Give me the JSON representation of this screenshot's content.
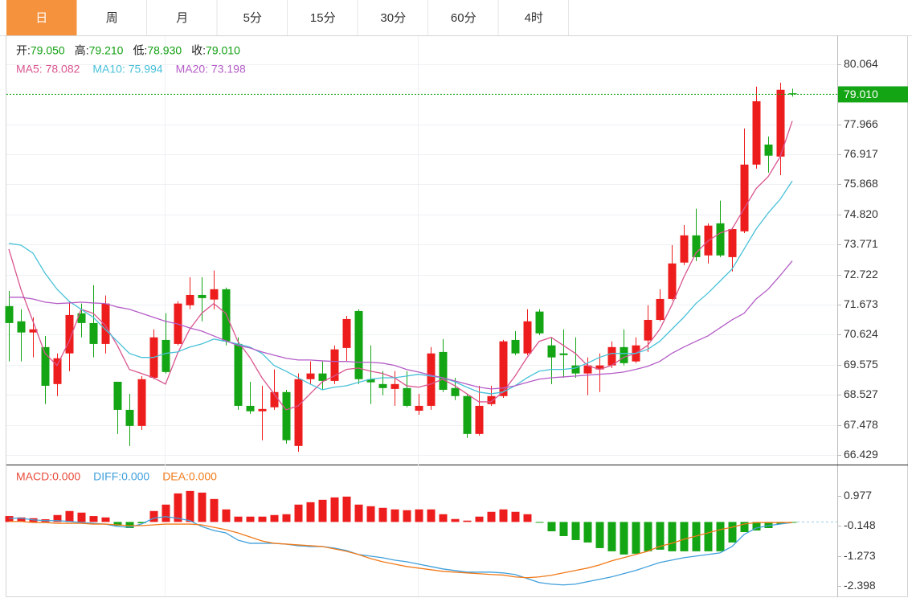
{
  "toolbar": {
    "tabs": [
      "日",
      "周",
      "月",
      "5分",
      "15分",
      "30分",
      "60分",
      "4时"
    ],
    "active": 0
  },
  "chart_data": [
    {
      "type": "candlestick",
      "info": [
        {
          "label": "开:",
          "value": "79.050"
        },
        {
          "label": "高:",
          "value": "79.210"
        },
        {
          "label": "低:",
          "value": "78.930"
        },
        {
          "label": "收:",
          "value": "79.010"
        }
      ],
      "info_color": "#12a012",
      "open": [
        71.62,
        71.09,
        70.7,
        70.19,
        68.9,
        69.97,
        71.37,
        71.03,
        70.3,
        68.98,
        68.0,
        67.44,
        69.12,
        70.44,
        70.3,
        71.65,
        72.01,
        71.85,
        72.21,
        70.3,
        68.14,
        67.95,
        68.09,
        68.62,
        66.74,
        69.07,
        69.27,
        69.01,
        70.16,
        71.45,
        69.07,
        68.9,
        68.73,
        68.76,
        67.97,
        68.14,
        70.02,
        68.76,
        68.48,
        67.16,
        68.2,
        68.48,
        70.44,
        69.97,
        71.43,
        70.25,
        69.97,
        69.55,
        69.27,
        69.41,
        69.55,
        70.19,
        69.69,
        70.42,
        71.14,
        71.87,
        73.14,
        74.09,
        73.39,
        74.51,
        73.33,
        74.23,
        76.56,
        77.26,
        76.84,
        79.05
      ],
      "high": [
        72.15,
        71.51,
        71.23,
        70.58,
        69.97,
        71.79,
        71.71,
        72.35,
        71.99,
        68.98,
        68.56,
        69.18,
        70.81,
        71.37,
        71.79,
        72.63,
        72.63,
        72.86,
        72.27,
        70.53,
        68.98,
        68.84,
        69.41,
        68.7,
        69.27,
        69.69,
        69.69,
        70.25,
        71.28,
        71.51,
        70.25,
        69.35,
        69.35,
        69.35,
        68.56,
        70.19,
        70.47,
        69.12,
        68.56,
        68.84,
        68.84,
        70.44,
        70.75,
        71.51,
        71.51,
        70.53,
        70.81,
        70.53,
        69.83,
        69.97,
        70.39,
        70.81,
        70.53,
        71.65,
        72.21,
        73.75,
        74.45,
        75.02,
        74.51,
        75.3,
        74.37,
        77.82,
        79.28,
        77.54,
        79.42,
        79.21
      ],
      "low": [
        69.69,
        69.69,
        69.83,
        68.2,
        68.48,
        69.35,
        70.53,
        69.83,
        69.97,
        67.16,
        66.74,
        67.3,
        69.07,
        69.27,
        70.25,
        71.51,
        71.09,
        71.51,
        70.25,
        68.0,
        67.86,
        66.94,
        68.0,
        66.82,
        66.54,
        68.9,
        68.7,
        68.9,
        69.69,
        68.9,
        68.2,
        68.51,
        68.14,
        68.09,
        67.83,
        68.0,
        68.62,
        68.34,
        67.02,
        67.1,
        68.14,
        68.42,
        69.91,
        69.91,
        70.61,
        68.9,
        69.12,
        69.12,
        68.51,
        68.62,
        69.46,
        69.55,
        69.63,
        70.02,
        71.09,
        71.82,
        73.05,
        73.19,
        73.11,
        73.33,
        72.83,
        74.17,
        76.42,
        76.28,
        76.19,
        78.93
      ],
      "close": [
        71.03,
        70.7,
        70.81,
        68.84,
        69.8,
        71.31,
        71.03,
        70.3,
        71.71,
        68.0,
        67.44,
        69.07,
        70.53,
        69.32,
        71.71,
        72.01,
        71.9,
        72.21,
        70.39,
        68.14,
        67.95,
        68.03,
        68.62,
        66.94,
        69.07,
        69.27,
        69.01,
        70.11,
        71.17,
        69.07,
        68.96,
        68.76,
        68.9,
        68.14,
        68.14,
        69.97,
        68.7,
        68.48,
        67.16,
        68.14,
        68.48,
        70.39,
        69.97,
        71.09,
        70.67,
        69.83,
        69.91,
        69.27,
        69.55,
        69.55,
        70.19,
        69.63,
        70.25,
        71.14,
        71.87,
        73.11,
        74.09,
        73.33,
        74.43,
        73.39,
        74.31,
        76.56,
        78.77,
        76.87,
        79.17,
        79.01
      ],
      "up_color": "#ee1d1d",
      "down_color": "#14a514",
      "series": [
        {
          "name": "MA5: 78.082",
          "color": "#d9558f",
          "values": [
            73.61,
            72.21,
            71.09,
            69.97,
            69.55,
            70.39,
            71.51,
            71.37,
            70.95,
            70.25,
            69.41,
            69.27,
            69.12,
            68.9,
            69.97,
            70.81,
            71.37,
            71.71,
            71.37,
            70.39,
            69.83,
            69.12,
            68.56,
            68.0,
            68.14,
            68.56,
            68.98,
            69.18,
            69.41,
            69.46,
            69.35,
            69.27,
            69.12,
            68.84,
            68.79,
            68.9,
            69.07,
            68.84,
            68.56,
            68.28,
            68.28,
            68.62,
            69.18,
            69.83,
            70.39,
            70.53,
            70.25,
            69.97,
            69.55,
            69.41,
            69.55,
            69.83,
            69.97,
            70.25,
            70.81,
            71.65,
            72.63,
            73.47,
            73.89,
            74.17,
            74.31,
            75.02,
            75.72,
            76.14,
            76.84,
            78.08
          ]
        },
        {
          "name": "MA10: 75.994",
          "color": "#48c1d8",
          "values": [
            73.81,
            73.75,
            73.47,
            72.77,
            72.21,
            71.79,
            71.51,
            71.23,
            70.81,
            70.39,
            69.97,
            69.83,
            69.83,
            69.97,
            70.02,
            70.19,
            70.3,
            70.47,
            70.39,
            70.3,
            70.19,
            69.97,
            69.55,
            69.35,
            69.12,
            68.9,
            68.7,
            68.79,
            68.84,
            68.96,
            69.07,
            69.12,
            69.12,
            69.18,
            69.24,
            69.18,
            69.12,
            68.98,
            68.79,
            68.62,
            68.56,
            68.62,
            68.84,
            69.12,
            69.35,
            69.41,
            69.41,
            69.46,
            69.63,
            69.83,
            69.97,
            69.97,
            69.97,
            70.11,
            70.39,
            70.81,
            71.23,
            71.71,
            72.07,
            72.49,
            72.91,
            73.61,
            74.31,
            74.87,
            75.35,
            75.99
          ]
        },
        {
          "name": "MA20: 73.198",
          "color": "#b45cc7",
          "values": [
            71.93,
            71.93,
            71.87,
            71.76,
            71.71,
            71.73,
            71.76,
            71.73,
            71.71,
            71.59,
            71.51,
            71.37,
            71.23,
            71.09,
            71.0,
            70.86,
            70.75,
            70.58,
            70.41,
            70.25,
            70.16,
            70.02,
            69.91,
            69.8,
            69.74,
            69.74,
            69.71,
            69.69,
            69.69,
            69.66,
            69.66,
            69.63,
            69.55,
            69.41,
            69.32,
            69.21,
            69.12,
            69.01,
            68.9,
            68.79,
            68.73,
            68.76,
            68.84,
            68.96,
            69.07,
            69.12,
            69.15,
            69.18,
            69.21,
            69.24,
            69.27,
            69.32,
            69.41,
            69.52,
            69.69,
            69.97,
            70.19,
            70.39,
            70.58,
            70.86,
            71.14,
            71.37,
            71.87,
            72.21,
            72.69,
            73.2
          ]
        }
      ],
      "ylim": [
        66.09,
        81.07
      ],
      "yticks": [
        80.064,
        77.966,
        76.917,
        75.868,
        {
          "value": 74.82,
          "label": "74.820"
        },
        73.771,
        72.722,
        71.673,
        70.624,
        69.575,
        68.527,
        67.478,
        66.429
      ],
      "price_marker": {
        "value": 79.01,
        "label": "79.010",
        "color": "#14a514"
      },
      "grid": true
    },
    {
      "type": "macd",
      "up_color": "#ee1d1d",
      "down_color": "#14a514",
      "series": [
        {
          "name": "MACD:0.000",
          "type": "bar",
          "color": "#e84b3a",
          "values": [
            0.22,
            0.17,
            0.14,
            0.1,
            0.26,
            0.41,
            0.35,
            0.22,
            0.17,
            -0.14,
            -0.23,
            -0.05,
            0.41,
            0.65,
            1.07,
            1.16,
            1.1,
            0.86,
            0.47,
            0.2,
            0.2,
            0.2,
            0.26,
            0.29,
            0.65,
            0.74,
            0.83,
            0.92,
            0.95,
            0.65,
            0.59,
            0.53,
            0.47,
            0.44,
            0.47,
            0.47,
            0.29,
            0.11,
            0.05,
            0.2,
            0.38,
            0.47,
            0.38,
            0.29,
            -0.02,
            -0.35,
            -0.53,
            -0.68,
            -0.77,
            -0.98,
            -1.1,
            -1.22,
            -1.19,
            -1.1,
            -1.04,
            -1.1,
            -1.1,
            -1.1,
            -1.1,
            -1.1,
            -0.77,
            -0.38,
            -0.32,
            -0.23,
            -0.08,
            -0.02
          ]
        },
        {
          "name": "DIFF:0.000",
          "type": "line",
          "color": "#3f9fdc",
          "values": [
            0.14,
            0.14,
            0.08,
            0.05,
            0.05,
            0.02,
            -0.02,
            -0.05,
            -0.08,
            -0.17,
            -0.2,
            -0.08,
            0.14,
            0.2,
            0.14,
            0.05,
            -0.17,
            -0.32,
            -0.41,
            -0.68,
            -0.8,
            -0.8,
            -0.8,
            -0.83,
            -0.89,
            -0.92,
            -0.92,
            -0.98,
            -1.07,
            -1.22,
            -1.28,
            -1.34,
            -1.43,
            -1.49,
            -1.58,
            -1.67,
            -1.76,
            -1.82,
            -1.88,
            -1.88,
            -1.88,
            -1.91,
            -1.97,
            -2.12,
            -2.27,
            -2.33,
            -2.36,
            -2.33,
            -2.24,
            -2.15,
            -2.06,
            -1.94,
            -1.82,
            -1.67,
            -1.52,
            -1.43,
            -1.34,
            -1.28,
            -1.22,
            -1.16,
            -0.92,
            -0.47,
            -0.23,
            -0.14,
            -0.08,
            -0.02
          ]
        },
        {
          "name": "DEA:0.000",
          "type": "line",
          "color": "#f07a1a",
          "values": [
            0.02,
            0.02,
            -0.02,
            -0.02,
            -0.05,
            -0.05,
            -0.05,
            -0.08,
            -0.08,
            -0.11,
            -0.14,
            -0.14,
            -0.11,
            -0.08,
            -0.08,
            -0.08,
            -0.11,
            -0.2,
            -0.29,
            -0.41,
            -0.56,
            -0.71,
            -0.8,
            -0.83,
            -0.86,
            -0.89,
            -0.92,
            -1.01,
            -1.1,
            -1.22,
            -1.37,
            -1.49,
            -1.58,
            -1.67,
            -1.73,
            -1.79,
            -1.85,
            -1.88,
            -1.91,
            -1.94,
            -1.97,
            -1.99,
            -2.06,
            -2.09,
            -2.06,
            -2.0,
            -1.91,
            -1.82,
            -1.73,
            -1.61,
            -1.46,
            -1.34,
            -1.22,
            -1.1,
            -0.92,
            -0.8,
            -0.65,
            -0.53,
            -0.41,
            -0.29,
            -0.2,
            -0.08,
            -0.02,
            -0.02,
            -0.02,
            -0.02
          ]
        }
      ],
      "ylim": [
        -2.79,
        2.09
      ],
      "yticks": [
        0.977,
        -0.148,
        -1.273,
        -2.398
      ]
    }
  ]
}
